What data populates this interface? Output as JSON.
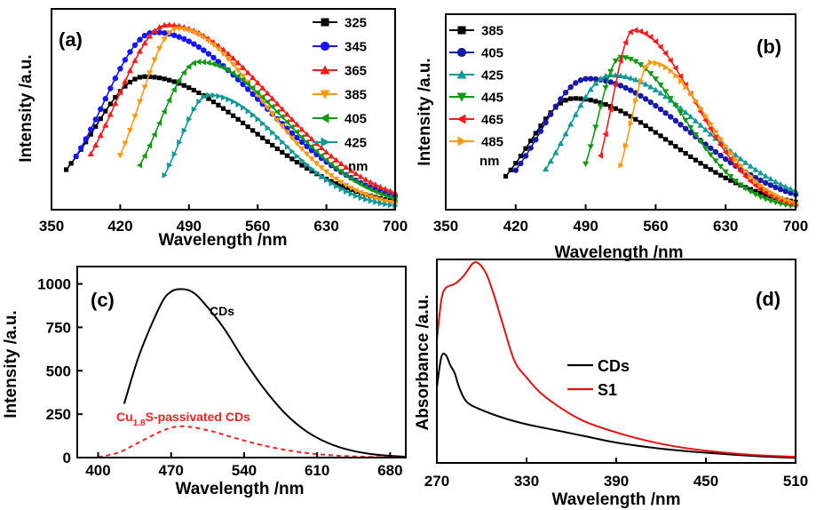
{
  "chart_data": [
    {
      "type": "line",
      "panel_label": "(a)",
      "xlabel": "Wavelength /nm",
      "ylabel": "Intensity /a.u.",
      "xlim": [
        350,
        700
      ],
      "ylim": [
        0,
        1
      ],
      "xticks": [
        "350",
        "420",
        "490",
        "560",
        "630",
        "700"
      ],
      "yticks": [],
      "legend_unit": "nm",
      "legend_position": "top-right",
      "series": [
        {
          "name": "325",
          "color": "#000000",
          "marker": "square",
          "start": 365,
          "peak": 445,
          "amp": 0.72
        },
        {
          "name": "345",
          "color": "#1515ff",
          "marker": "circle",
          "start": 375,
          "peak": 455,
          "amp": 0.96
        },
        {
          "name": "365",
          "color": "#ff1a1a",
          "marker": "triangle-up",
          "start": 390,
          "peak": 468,
          "amp": 1.0
        },
        {
          "name": "385",
          "color": "#ff9a10",
          "marker": "triangle-down",
          "start": 420,
          "peak": 478,
          "amp": 0.98
        },
        {
          "name": "405",
          "color": "#119a11",
          "marker": "triangle-left",
          "start": 440,
          "peak": 500,
          "amp": 0.8
        },
        {
          "name": "425",
          "color": "#109999",
          "marker": "triangle-right",
          "start": 465,
          "peak": 510,
          "amp": 0.62
        }
      ]
    },
    {
      "type": "line",
      "panel_label": "(b)",
      "xlabel": "Wavelength /nm",
      "ylabel": "Intensity /a.u.",
      "xlim": [
        350,
        700
      ],
      "ylim": [
        0,
        1
      ],
      "xticks": [
        "350",
        "420",
        "490",
        "560",
        "630",
        "700"
      ],
      "yticks": [],
      "legend_unit": "nm",
      "legend_position": "top-left",
      "series": [
        {
          "name": "385",
          "color": "#000000",
          "marker": "square",
          "start": 410,
          "peak": 478,
          "amp": 0.62
        },
        {
          "name": "405",
          "color": "#1a1aaa",
          "marker": "circle",
          "start": 420,
          "peak": 492,
          "amp": 0.73
        },
        {
          "name": "425",
          "color": "#109999",
          "marker": "triangle-up",
          "start": 450,
          "peak": 515,
          "amp": 0.75
        },
        {
          "name": "445",
          "color": "#119a11",
          "marker": "triangle-down",
          "start": 490,
          "peak": 525,
          "amp": 0.85
        },
        {
          "name": "465",
          "color": "#ff1a1a",
          "marker": "triangle-left",
          "start": 505,
          "peak": 538,
          "amp": 1.0
        },
        {
          "name": "485",
          "color": "#ff9a10",
          "marker": "triangle-right",
          "start": 525,
          "peak": 555,
          "amp": 0.82
        }
      ]
    },
    {
      "type": "line",
      "panel_label": "(c)",
      "xlabel": "Wavelength /nm",
      "ylabel": "Intensity /a.u.",
      "xlim": [
        380,
        695
      ],
      "ylim": [
        0,
        1100
      ],
      "xticks": [
        400,
        470,
        540,
        610,
        680
      ],
      "yticks": [
        0,
        250,
        500,
        750,
        1000
      ],
      "series": [
        {
          "name": "CDs",
          "color": "#000000",
          "dash": false,
          "x": [
            425,
            440,
            460,
            470,
            480,
            490,
            500,
            520,
            540,
            560,
            580,
            600,
            620,
            640,
            660,
            680,
            695
          ],
          "y": [
            310,
            600,
            880,
            955,
            970,
            955,
            900,
            750,
            560,
            390,
            250,
            150,
            85,
            45,
            22,
            10,
            5
          ]
        },
        {
          "name": "Cu1.8S-passivated CDs",
          "color": "#ff2020",
          "dash": true,
          "x": [
            400,
            420,
            440,
            460,
            475,
            490,
            510,
            530,
            550,
            570,
            590,
            610,
            630,
            650,
            670,
            690,
            695
          ],
          "y": [
            3,
            30,
            90,
            150,
            178,
            175,
            150,
            115,
            82,
            55,
            34,
            20,
            11,
            6,
            3,
            1,
            1
          ]
        }
      ],
      "annotations": [
        {
          "text": "CDs",
          "color": "#000000"
        },
        {
          "text_main": "Cu",
          "text_sub": "1.8",
          "text_tail": "S-passivated CDs",
          "color": "#ff2020"
        }
      ]
    },
    {
      "type": "line",
      "panel_label": "(d)",
      "xlabel": "Wavelength /nm",
      "ylabel": "Absorbance /a.u.",
      "xlim": [
        270,
        510
      ],
      "ylim": [
        0,
        1
      ],
      "xticks": [
        270,
        330,
        390,
        450,
        510
      ],
      "yticks": [],
      "legend_position": "center-right",
      "series": [
        {
          "name": "CDs",
          "color": "#000000",
          "x": [
            270,
            273,
            276,
            279,
            282,
            285,
            290,
            300,
            315,
            330,
            350,
            370,
            390,
            420,
            450,
            480,
            510
          ],
          "y": [
            0.37,
            0.52,
            0.53,
            0.48,
            0.44,
            0.37,
            0.3,
            0.26,
            0.22,
            0.19,
            0.16,
            0.13,
            0.1,
            0.07,
            0.05,
            0.035,
            0.025
          ]
        },
        {
          "name": "S1",
          "color": "#e81010",
          "x": [
            270,
            273,
            276,
            282,
            288,
            294,
            298,
            303,
            308,
            315,
            322,
            330,
            340,
            355,
            370,
            390,
            410,
            430,
            450,
            480,
            510
          ],
          "y": [
            0.6,
            0.8,
            0.86,
            0.88,
            0.92,
            0.98,
            0.98,
            0.93,
            0.83,
            0.66,
            0.5,
            0.42,
            0.34,
            0.26,
            0.2,
            0.15,
            0.11,
            0.08,
            0.06,
            0.04,
            0.03
          ]
        }
      ]
    }
  ]
}
